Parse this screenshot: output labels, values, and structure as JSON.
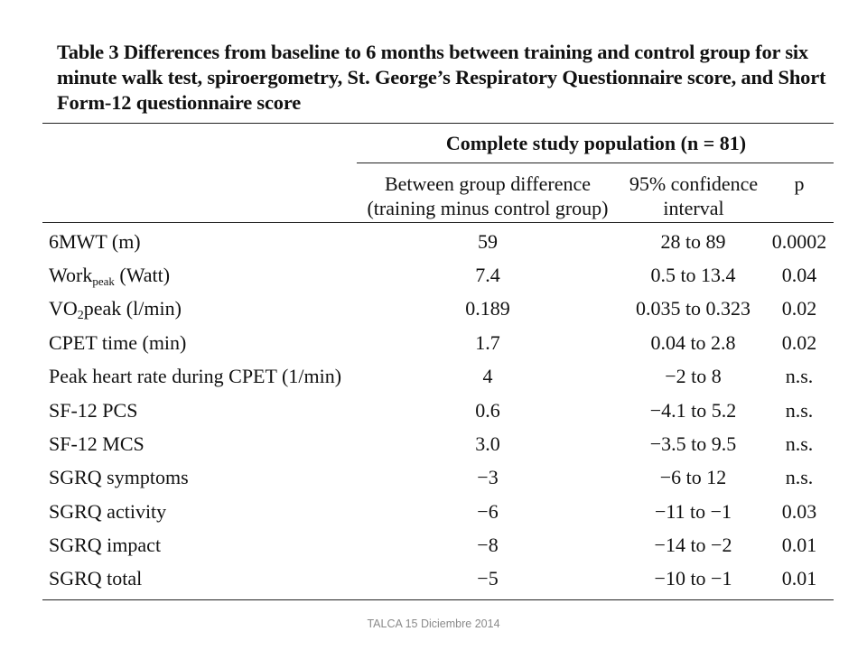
{
  "caption": "Table 3 Differences from baseline to 6 months between training and control group for six minute walk test, spiroergometry, St. George’s Respiratory Questionnaire score, and Short Form-12 questionnaire score",
  "group_header": "Complete study population (n = 81)",
  "columns": {
    "diff_line1": "Between group difference",
    "diff_line2": "(training minus control group)",
    "ci_line1": "95% confidence",
    "ci_line2": "interval",
    "p": "p"
  },
  "rows": [
    {
      "label": "6MWT (m)",
      "diff": "59",
      "ci": "28 to 89",
      "p": "0.0002"
    },
    {
      "label_main": "Work",
      "label_sub": "peak",
      "label_rest": " (Watt)",
      "diff": "7.4",
      "ci": "0.5 to 13.4",
      "p": "0.04"
    },
    {
      "label_main": "VO",
      "label_sub": "2",
      "label_rest": "peak (l/min)",
      "diff": "0.189",
      "ci": "0.035 to 0.323",
      "p": "0.02"
    },
    {
      "label": "CPET time (min)",
      "diff": "1.7",
      "ci": "0.04 to 2.8",
      "p": "0.02"
    },
    {
      "label": "Peak heart rate during CPET (1/min)",
      "diff": "4",
      "ci": "−2 to 8",
      "p": "n.s."
    },
    {
      "label": "SF-12 PCS",
      "diff": "0.6",
      "ci": "−4.1 to 5.2",
      "p": "n.s."
    },
    {
      "label": "SF-12 MCS",
      "diff": "3.0",
      "ci": "−3.5 to 9.5",
      "p": "n.s."
    },
    {
      "label": "SGRQ symptoms",
      "diff": "−3",
      "ci": "−6 to 12",
      "p": "n.s."
    },
    {
      "label": "SGRQ activity",
      "diff": "−6",
      "ci": "−11 to −1",
      "p": "0.03"
    },
    {
      "label": "SGRQ impact",
      "diff": "−8",
      "ci": "−14 to −2",
      "p": "0.01"
    },
    {
      "label": "SGRQ total",
      "diff": "−5",
      "ci": "−10 to −1",
      "p": "0.01"
    }
  ],
  "footer": "TALCA 15 Diciembre 2014"
}
